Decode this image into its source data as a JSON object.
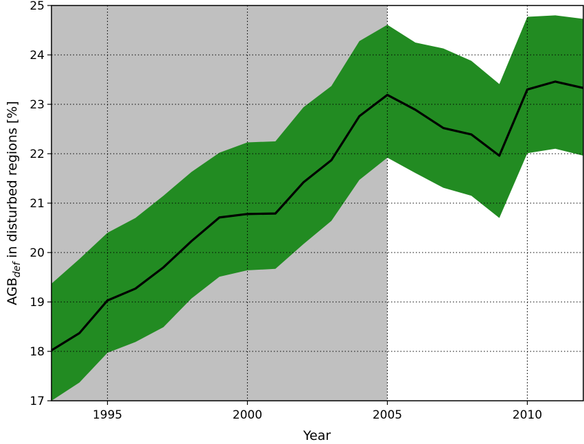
{
  "chart_data": {
    "type": "line",
    "xlabel": "Year",
    "ylabel_main": "AGB",
    "ylabel_sub": "def",
    "ylabel_rest": " in disturbed regions [%]",
    "xlim": [
      1993,
      2012
    ],
    "ylim": [
      17,
      25
    ],
    "xticks": [
      1995,
      2000,
      2005,
      2010
    ],
    "yticks": [
      17,
      18,
      19,
      20,
      21,
      22,
      23,
      24,
      25
    ],
    "grid": true,
    "shaded_region": {
      "x_from": 1993,
      "x_to": 2005,
      "color": "#c0c0c0"
    },
    "band_color": "#228b22",
    "line_color": "#000000",
    "x": [
      1993,
      1994,
      1995,
      1996,
      1997,
      1998,
      1999,
      2000,
      2001,
      2002,
      2003,
      2004,
      2005,
      2006,
      2007,
      2008,
      2009,
      2010,
      2011,
      2012
    ],
    "mean": [
      18.02,
      18.37,
      19.03,
      19.27,
      19.7,
      20.23,
      20.71,
      20.78,
      20.79,
      21.42,
      21.87,
      22.76,
      23.19,
      22.89,
      22.52,
      22.39,
      21.96,
      23.3,
      23.46,
      23.33
    ],
    "upper": [
      19.37,
      19.87,
      20.4,
      20.7,
      21.15,
      21.63,
      22.02,
      22.23,
      22.25,
      22.94,
      23.37,
      24.28,
      24.61,
      24.25,
      24.13,
      23.88,
      23.41,
      24.77,
      24.8,
      24.73
    ],
    "lower": [
      17.0,
      17.37,
      17.97,
      18.19,
      18.49,
      19.07,
      19.51,
      19.64,
      19.67,
      20.17,
      20.64,
      21.47,
      21.92,
      21.61,
      21.31,
      21.15,
      20.7,
      22.01,
      22.1,
      21.96
    ]
  }
}
